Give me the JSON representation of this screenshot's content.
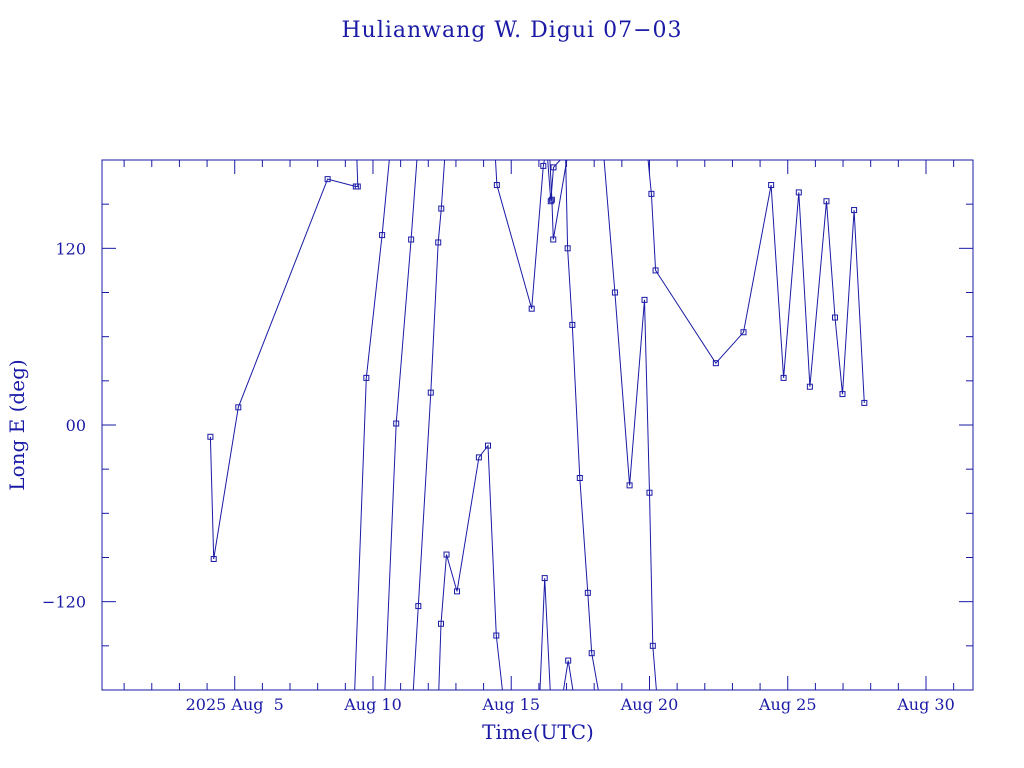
{
  "chart_data": {
    "type": "line",
    "title": "Hulianwang W. Digui 07−03",
    "xlabel": "Time(UTC)",
    "ylabel": "Long E (deg)",
    "xlim": [
      0.2,
      31.7
    ],
    "ylim": [
      -180,
      180
    ],
    "color": "#1a1aa6",
    "x_ticks": [
      {
        "day": 5,
        "label": "2025 Aug  5"
      },
      {
        "day": 10,
        "label": "Aug 10"
      },
      {
        "day": 15,
        "label": "Aug 15"
      },
      {
        "day": 20,
        "label": "Aug 20"
      },
      {
        "day": 25,
        "label": "Aug 25"
      },
      {
        "day": 30,
        "label": "Aug 30"
      }
    ],
    "y_ticks": [
      {
        "value": 120,
        "label": "120"
      },
      {
        "value": 0,
        "label": "00"
      },
      {
        "value": -120,
        "label": "−120"
      }
    ],
    "series": [
      {
        "x": [
          4.12,
          4.24,
          5.13,
          8.36,
          9.38,
          9.45,
          9.42
        ],
        "y": [
          -8,
          -91,
          12,
          167,
          162,
          162,
          180
        ]
      },
      {
        "x": [
          10.59,
          10.33,
          9.76,
          9.34,
          9.38
        ],
        "y": [
          180,
          129,
          32,
          -180,
          -180
        ]
      },
      {
        "x": [
          11.59,
          11.38,
          10.84,
          10.43,
          10.43
        ],
        "y": [
          180,
          126,
          1,
          -180,
          -180
        ]
      },
      {
        "x": [
          12.59,
          12.47,
          12.36,
          12.09,
          11.64,
          11.46,
          11.4
        ],
        "y": [
          180,
          147,
          124,
          22,
          -123,
          -180,
          -180
        ]
      },
      {
        "x": [
          14.43,
          14.48,
          15.74,
          16.16,
          16.2
        ],
        "y": [
          180,
          163,
          79,
          176,
          180
        ]
      },
      {
        "x": [
          16.77,
          16.53,
          16.43,
          16.32
        ],
        "y": [
          180,
          175,
          152,
          180
        ]
      },
      {
        "x": [
          17.01,
          16.52,
          16.47,
          16.4
        ],
        "y": [
          180,
          126,
          153,
          180
        ]
      },
      {
        "x": [
          15.36,
          15.17,
          14.97,
          14.68,
          14.46,
          14.16,
          13.83,
          13.04,
          12.66,
          12.46,
          12.38,
          12.32
        ],
        "y": [
          -180,
          -180,
          -180,
          -180,
          -143,
          -14,
          -22,
          -113,
          -88,
          -135,
          -180,
          -180
        ]
      },
      {
        "x": [
          16.66,
          16.57,
          16.41,
          16.21,
          16.04
        ],
        "y": [
          -180,
          -180,
          -180,
          -104,
          -180
        ]
      },
      {
        "x": [
          17.23,
          17.06,
          16.89
        ],
        "y": [
          -180,
          -160,
          -180
        ]
      },
      {
        "x": [
          18.15,
          17.91,
          17.77,
          17.48,
          17.21,
          17.04,
          16.97
        ],
        "y": [
          -180,
          -155,
          -114,
          -36,
          68,
          120,
          180
        ]
      },
      {
        "x": [
          20.25,
          20.12,
          20.0,
          19.82,
          19.28,
          18.75,
          18.36,
          17.97,
          17.83
        ],
        "y": [
          -180,
          -150,
          -46,
          85,
          -41,
          90,
          180,
          180,
          180
        ]
      },
      {
        "x": [
          19.95,
          20.07,
          20.22,
          22.4,
          23.4,
          24.4,
          24.85,
          25.4,
          25.8,
          26.4,
          26.71,
          26.98,
          27.4,
          27.77
        ],
        "y": [
          180,
          157,
          105,
          42,
          63,
          163,
          32,
          158,
          26,
          152,
          73,
          21,
          146,
          15
        ]
      }
    ]
  }
}
